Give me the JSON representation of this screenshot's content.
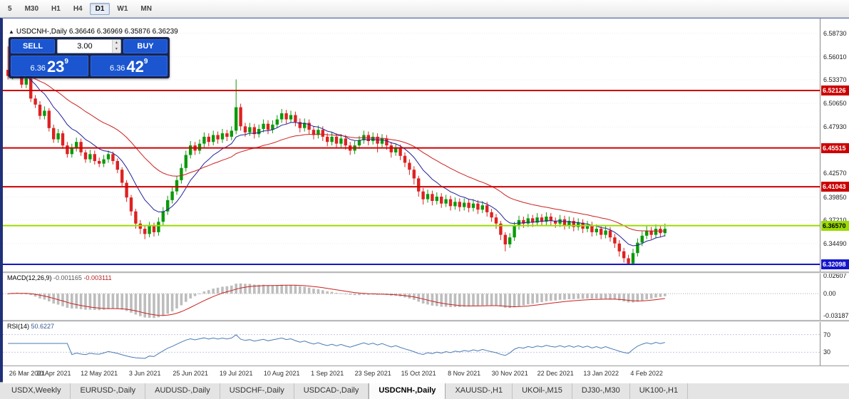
{
  "toolbar": {
    "timeframes": [
      "5",
      "M30",
      "H1",
      "H4",
      "D1",
      "W1",
      "MN"
    ],
    "active": "D1"
  },
  "chart": {
    "toggle_icon": "▲",
    "title": "USDCNH-,Daily 6.36646 6.36969 6.35876 6.36239"
  },
  "trade_panel": {
    "sell_label": "SELL",
    "buy_label": "BUY",
    "volume": "3.00",
    "spinner_up_icon": "▴",
    "spinner_down_icon": "▾",
    "sell_price_base": "6.36",
    "sell_price_big": "23",
    "sell_price_sup": "9",
    "buy_price_base": "6.36",
    "buy_price_big": "42",
    "buy_price_sup": "9"
  },
  "price_axis": {
    "plain": [
      {
        "text": "6.58730",
        "value": 6.5873
      },
      {
        "text": "6.56010",
        "value": 6.5601
      },
      {
        "text": "6.53370",
        "value": 6.5337
      },
      {
        "text": "6.50650",
        "value": 6.5065
      },
      {
        "text": "6.47930",
        "value": 6.4793
      },
      {
        "text": "6.42570",
        "value": 6.4257
      },
      {
        "text": "6.39850",
        "value": 6.3985
      },
      {
        "text": "6.37210",
        "value": 6.3721
      },
      {
        "text": "6.34490",
        "value": 6.3449
      }
    ],
    "badges": [
      {
        "text": "6.52126",
        "value": 6.52126,
        "bg": "#cc0000",
        "fg": "#ffffff"
      },
      {
        "text": "6.45515",
        "value": 6.45515,
        "bg": "#cc0000",
        "fg": "#ffffff"
      },
      {
        "text": "6.41043",
        "value": 6.41043,
        "bg": "#cc0000",
        "fg": "#ffffff"
      },
      {
        "text": "6.36570",
        "value": 6.3657,
        "bg": "#9bdb00",
        "fg": "#000000"
      },
      {
        "text": "6.32098",
        "value": 6.32098,
        "bg": "#1515cc",
        "fg": "#ffffff"
      }
    ]
  },
  "macd": {
    "name": "MACD(12,26,9)",
    "main_value": "-0.001165",
    "signal_value": "-0.003111",
    "axis": [
      {
        "text": "0.02607",
        "value": 0.02607
      },
      {
        "text": "0.00",
        "value": 0
      },
      {
        "text": "-0.03187",
        "value": -0.03187
      }
    ]
  },
  "rsi": {
    "name": "RSI(14)",
    "value": "50.6227",
    "levels": [
      {
        "text": "70",
        "value": 70
      },
      {
        "text": "30",
        "value": 30
      }
    ]
  },
  "x_axis": {
    "dates": [
      "26 Mar 2021",
      "20 Apr 2021",
      "12 May 2021",
      "3 Jun 2021",
      "25 Jun 2021",
      "19 Jul 2021",
      "10 Aug 2021",
      "1 Sep 2021",
      "23 Sep 2021",
      "15 Oct 2021",
      "8 Nov 2021",
      "30 Nov 2021",
      "22 Dec 2021",
      "13 Jan 2022",
      "4 Feb 2022"
    ]
  },
  "tabs": {
    "items": [
      "USDX,Weekly",
      "EURUSD-,Daily",
      "AUDUSD-,Daily",
      "USDCHF-,Daily",
      "USDCAD-,Daily",
      "USDCNH-,Daily",
      "XAUUSD-,H1",
      "UKOil-,M15",
      "DJ30-,M30",
      "UK100-,H1"
    ],
    "active_index": 5
  },
  "chart_data": {
    "type": "candlestick",
    "symbol": "USDCNH-",
    "timeframe": "Daily",
    "ohlc_display": {
      "open": "6.36646",
      "high": "6.36969",
      "low": "6.35876",
      "close": "6.36239"
    },
    "y_range": [
      6.3128,
      6.6042
    ],
    "date_tick_every": 10,
    "overlay_ma_periods": [
      10,
      30
    ],
    "macd_params": {
      "fast": 12,
      "slow": 26,
      "signal": 9
    },
    "rsi_period": 14,
    "colors": {
      "up": "#0a9a0a",
      "down": "#dd2222",
      "ma_fast": "#20209a",
      "ma_slow": "#cc2020",
      "macd_hist": "#bdbdbd",
      "macd_signal": "#cc2020",
      "rsi_line": "#4a7ab5"
    },
    "hlines": [
      {
        "price": 6.52126,
        "color": "#cc0000",
        "width": 2
      },
      {
        "price": 6.45515,
        "color": "#cc0000",
        "width": 2
      },
      {
        "price": 6.41043,
        "color": "#cc0000",
        "width": 2
      },
      {
        "price": 6.3657,
        "color": "#9bdb00",
        "width": 2
      },
      {
        "price": 6.32098,
        "color": "#1515cc",
        "width": 2
      }
    ],
    "candles": [
      [
        6.545,
        6.572,
        6.534,
        6.538
      ],
      [
        6.538,
        6.557,
        6.534,
        6.552
      ],
      [
        6.552,
        6.556,
        6.541,
        6.545
      ],
      [
        6.545,
        6.549,
        6.524,
        6.528
      ],
      [
        6.528,
        6.54,
        6.524,
        6.535
      ],
      [
        6.535,
        6.538,
        6.508,
        6.512
      ],
      [
        6.512,
        6.516,
        6.501,
        6.505
      ],
      [
        6.505,
        6.509,
        6.488,
        6.492
      ],
      [
        6.492,
        6.503,
        6.488,
        6.498
      ],
      [
        6.498,
        6.501,
        6.474,
        6.478
      ],
      [
        6.478,
        6.482,
        6.461,
        6.465
      ],
      [
        6.465,
        6.477,
        6.461,
        6.472
      ],
      [
        6.472,
        6.475,
        6.454,
        6.458
      ],
      [
        6.458,
        6.462,
        6.444,
        6.448
      ],
      [
        6.448,
        6.46,
        6.444,
        6.455
      ],
      [
        6.455,
        6.467,
        6.451,
        6.462
      ],
      [
        6.462,
        6.466,
        6.446,
        6.45
      ],
      [
        6.45,
        6.453,
        6.438,
        6.442
      ],
      [
        6.442,
        6.453,
        6.438,
        6.448
      ],
      [
        6.448,
        6.452,
        6.436,
        6.44
      ],
      [
        6.44,
        6.444,
        6.433,
        6.437
      ],
      [
        6.437,
        6.447,
        6.433,
        6.442
      ],
      [
        6.442,
        6.452,
        6.438,
        6.448
      ],
      [
        6.448,
        6.451,
        6.436,
        6.44
      ],
      [
        6.44,
        6.443,
        6.426,
        6.43
      ],
      [
        6.43,
        6.433,
        6.41,
        6.415
      ],
      [
        6.415,
        6.418,
        6.393,
        6.398
      ],
      [
        6.398,
        6.401,
        6.377,
        6.382
      ],
      [
        6.382,
        6.385,
        6.362,
        6.368
      ],
      [
        6.368,
        6.372,
        6.356,
        6.362
      ],
      [
        6.362,
        6.366,
        6.35,
        6.356
      ],
      [
        6.356,
        6.37,
        6.352,
        6.365
      ],
      [
        6.365,
        6.369,
        6.353,
        6.358
      ],
      [
        6.358,
        6.375,
        6.354,
        6.37
      ],
      [
        6.37,
        6.387,
        6.366,
        6.382
      ],
      [
        6.382,
        6.4,
        6.378,
        6.395
      ],
      [
        6.395,
        6.41,
        6.391,
        6.405
      ],
      [
        6.405,
        6.423,
        6.401,
        6.418
      ],
      [
        6.418,
        6.437,
        6.414,
        6.432
      ],
      [
        6.432,
        6.452,
        6.428,
        6.447
      ],
      [
        6.447,
        6.463,
        6.443,
        6.458
      ],
      [
        6.458,
        6.462,
        6.447,
        6.452
      ],
      [
        6.452,
        6.465,
        6.448,
        6.46
      ],
      [
        6.46,
        6.473,
        6.456,
        6.468
      ],
      [
        6.468,
        6.472,
        6.457,
        6.462
      ],
      [
        6.462,
        6.475,
        6.458,
        6.47
      ],
      [
        6.47,
        6.474,
        6.46,
        6.465
      ],
      [
        6.465,
        6.477,
        6.461,
        6.472
      ],
      [
        6.472,
        6.476,
        6.463,
        6.468
      ],
      [
        6.468,
        6.48,
        6.464,
        6.475
      ],
      [
        6.475,
        6.534,
        6.471,
        6.502
      ],
      [
        6.502,
        6.506,
        6.475,
        6.48
      ],
      [
        6.48,
        6.484,
        6.468,
        6.473
      ],
      [
        6.473,
        6.484,
        6.469,
        6.479
      ],
      [
        6.479,
        6.483,
        6.466,
        6.471
      ],
      [
        6.471,
        6.482,
        6.467,
        6.477
      ],
      [
        6.477,
        6.488,
        6.473,
        6.483
      ],
      [
        6.483,
        6.487,
        6.471,
        6.476
      ],
      [
        6.476,
        6.487,
        6.472,
        6.482
      ],
      [
        6.482,
        6.493,
        6.478,
        6.488
      ],
      [
        6.488,
        6.5,
        6.484,
        6.495
      ],
      [
        6.495,
        6.499,
        6.483,
        6.488
      ],
      [
        6.488,
        6.498,
        6.484,
        6.493
      ],
      [
        6.493,
        6.497,
        6.48,
        6.485
      ],
      [
        6.485,
        6.489,
        6.473,
        6.478
      ],
      [
        6.478,
        6.489,
        6.474,
        6.484
      ],
      [
        6.484,
        6.488,
        6.471,
        6.476
      ],
      [
        6.476,
        6.48,
        6.465,
        6.47
      ],
      [
        6.47,
        6.481,
        6.466,
        6.476
      ],
      [
        6.476,
        6.48,
        6.463,
        6.468
      ],
      [
        6.468,
        6.472,
        6.457,
        6.462
      ],
      [
        6.462,
        6.473,
        6.458,
        6.468
      ],
      [
        6.468,
        6.472,
        6.455,
        6.46
      ],
      [
        6.46,
        6.471,
        6.456,
        6.466
      ],
      [
        6.466,
        6.47,
        6.453,
        6.458
      ],
      [
        6.458,
        6.462,
        6.447,
        6.452
      ],
      [
        6.452,
        6.463,
        6.448,
        6.458
      ],
      [
        6.458,
        6.469,
        6.454,
        6.464
      ],
      [
        6.464,
        6.475,
        6.46,
        6.47
      ],
      [
        6.47,
        6.474,
        6.458,
        6.463
      ],
      [
        6.463,
        6.473,
        6.459,
        6.468
      ],
      [
        6.468,
        6.472,
        6.45,
        6.46
      ],
      [
        6.46,
        6.471,
        6.456,
        6.466
      ],
      [
        6.466,
        6.47,
        6.453,
        6.458
      ],
      [
        6.458,
        6.462,
        6.444,
        6.45
      ],
      [
        6.45,
        6.46,
        6.446,
        6.455
      ],
      [
        6.455,
        6.459,
        6.441,
        6.446
      ],
      [
        6.446,
        6.45,
        6.433,
        6.438
      ],
      [
        6.438,
        6.442,
        6.424,
        6.43
      ],
      [
        6.43,
        6.434,
        6.413,
        6.42
      ],
      [
        6.42,
        6.423,
        6.399,
        6.405
      ],
      [
        6.405,
        6.409,
        6.39,
        6.396
      ],
      [
        6.396,
        6.407,
        6.392,
        6.402
      ],
      [
        6.402,
        6.406,
        6.389,
        6.394
      ],
      [
        6.394,
        6.404,
        6.39,
        6.399
      ],
      [
        6.399,
        6.403,
        6.386,
        6.391
      ],
      [
        6.391,
        6.401,
        6.387,
        6.396
      ],
      [
        6.396,
        6.4,
        6.383,
        6.388
      ],
      [
        6.388,
        6.398,
        6.384,
        6.393
      ],
      [
        6.393,
        6.397,
        6.382,
        6.387
      ],
      [
        6.387,
        6.397,
        6.383,
        6.392
      ],
      [
        6.392,
        6.396,
        6.381,
        6.386
      ],
      [
        6.386,
        6.396,
        6.382,
        6.391
      ],
      [
        6.391,
        6.395,
        6.379,
        6.384
      ],
      [
        6.384,
        6.394,
        6.38,
        6.389
      ],
      [
        6.389,
        6.393,
        6.376,
        6.381
      ],
      [
        6.381,
        6.385,
        6.37,
        6.375
      ],
      [
        6.375,
        6.379,
        6.362,
        6.368
      ],
      [
        6.368,
        6.371,
        6.349,
        6.355
      ],
      [
        6.355,
        6.358,
        6.336,
        6.344
      ],
      [
        6.344,
        6.357,
        6.34,
        6.352
      ],
      [
        6.352,
        6.37,
        6.348,
        6.365
      ],
      [
        6.365,
        6.377,
        6.361,
        6.372
      ],
      [
        6.372,
        6.376,
        6.363,
        6.368
      ],
      [
        6.368,
        6.379,
        6.364,
        6.374
      ],
      [
        6.374,
        6.378,
        6.364,
        6.369
      ],
      [
        6.369,
        6.38,
        6.365,
        6.375
      ],
      [
        6.375,
        6.379,
        6.365,
        6.37
      ],
      [
        6.37,
        6.381,
        6.366,
        6.376
      ],
      [
        6.376,
        6.38,
        6.366,
        6.371
      ],
      [
        6.371,
        6.375,
        6.363,
        6.368
      ],
      [
        6.368,
        6.378,
        6.364,
        6.373
      ],
      [
        6.373,
        6.377,
        6.361,
        6.366
      ],
      [
        6.366,
        6.376,
        6.362,
        6.371
      ],
      [
        6.371,
        6.375,
        6.359,
        6.364
      ],
      [
        6.364,
        6.374,
        6.36,
        6.369
      ],
      [
        6.369,
        6.373,
        6.357,
        6.362
      ],
      [
        6.362,
        6.371,
        6.358,
        6.366
      ],
      [
        6.366,
        6.37,
        6.353,
        6.358
      ],
      [
        6.358,
        6.367,
        6.354,
        6.362
      ],
      [
        6.362,
        6.366,
        6.35,
        6.355
      ],
      [
        6.355,
        6.365,
        6.351,
        6.36
      ],
      [
        6.36,
        6.364,
        6.347,
        6.352
      ],
      [
        6.352,
        6.356,
        6.34,
        6.345
      ],
      [
        6.345,
        6.349,
        6.33,
        6.336
      ],
      [
        6.336,
        6.34,
        6.323,
        6.328
      ],
      [
        6.328,
        6.332,
        6.321,
        6.322
      ],
      [
        6.322,
        6.339,
        6.32,
        6.334
      ],
      [
        6.334,
        6.351,
        6.33,
        6.346
      ],
      [
        6.346,
        6.359,
        6.342,
        6.354
      ],
      [
        6.354,
        6.365,
        6.35,
        6.36
      ],
      [
        6.36,
        6.364,
        6.35,
        6.355
      ],
      [
        6.355,
        6.367,
        6.351,
        6.362
      ],
      [
        6.362,
        6.366,
        6.352,
        6.357
      ],
      [
        6.357,
        6.368,
        6.353,
        6.362
      ]
    ]
  }
}
